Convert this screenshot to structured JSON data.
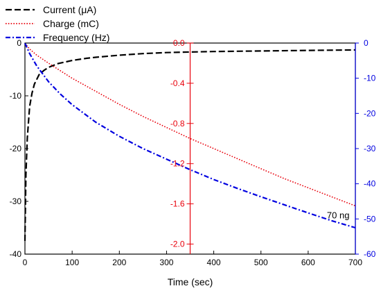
{
  "chart_data": {
    "type": "line",
    "x": {
      "label": "Time (sec)",
      "range": [
        0,
        700
      ],
      "ticks": [
        0,
        100,
        200,
        300,
        400,
        500,
        600,
        700
      ]
    },
    "axes": {
      "left": {
        "range": [
          -40,
          0
        ],
        "ticks": [
          0,
          -10,
          -20,
          -30,
          -40
        ],
        "color": "#000000"
      },
      "middle": {
        "range": [
          -2.1,
          0
        ],
        "ticks": [
          "0.0",
          "-0.4",
          "-0.8",
          "-1.2",
          "-1.6",
          "-2.0"
        ],
        "tick_values": [
          0,
          -0.4,
          -0.8,
          -1.2,
          -1.6,
          -2.0
        ],
        "position_x": 350,
        "color": "#e8000b"
      },
      "right": {
        "range": [
          -60,
          0
        ],
        "ticks": [
          0,
          -10,
          -20,
          -30,
          -40,
          -50,
          -60
        ],
        "color": "#0000e0"
      }
    },
    "series": [
      {
        "name": "Current (μA)",
        "axis": "left",
        "color": "#000000",
        "dash": "dashed",
        "x": [
          0,
          2,
          5,
          10,
          15,
          20,
          30,
          40,
          50,
          70,
          100,
          130,
          150,
          200,
          250,
          300,
          350,
          400,
          500,
          600,
          700
        ],
        "y": [
          -37.5,
          -25.0,
          -18.0,
          -12.0,
          -9.5,
          -7.8,
          -6.0,
          -5.2,
          -4.6,
          -3.9,
          -3.3,
          -2.9,
          -2.7,
          -2.3,
          -2.0,
          -1.8,
          -1.7,
          -1.6,
          -1.5,
          -1.4,
          -1.3
        ]
      },
      {
        "name": "Charge (mC)",
        "axis": "middle",
        "color": "#e8000b",
        "dash": "dotted",
        "x": [
          0,
          10,
          25,
          50,
          100,
          150,
          200,
          250,
          300,
          350,
          400,
          450,
          500,
          550,
          600,
          650,
          700
        ],
        "y": [
          0.0,
          -0.06,
          -0.12,
          -0.2,
          -0.35,
          -0.48,
          -0.61,
          -0.73,
          -0.84,
          -0.95,
          -1.05,
          -1.15,
          -1.25,
          -1.35,
          -1.44,
          -1.53,
          -1.62
        ]
      },
      {
        "name": "Frequency (Hz)",
        "axis": "right",
        "color": "#0000e0",
        "dash": "dashdot",
        "x": [
          0,
          10,
          25,
          50,
          75,
          100,
          150,
          200,
          250,
          300,
          350,
          400,
          450,
          500,
          550,
          600,
          650,
          700
        ],
        "y": [
          0.0,
          -3.0,
          -6.5,
          -11.0,
          -14.5,
          -17.5,
          -22.5,
          -26.5,
          -30.0,
          -33.0,
          -36.0,
          -38.8,
          -41.3,
          -43.7,
          -46.0,
          -48.3,
          -50.5,
          -52.5
        ]
      }
    ],
    "legend": {
      "placement": "top-left outside"
    },
    "annotations": [
      {
        "text": "70 ng",
        "x": 650,
        "y_right": -49
      }
    ],
    "grid": false
  }
}
